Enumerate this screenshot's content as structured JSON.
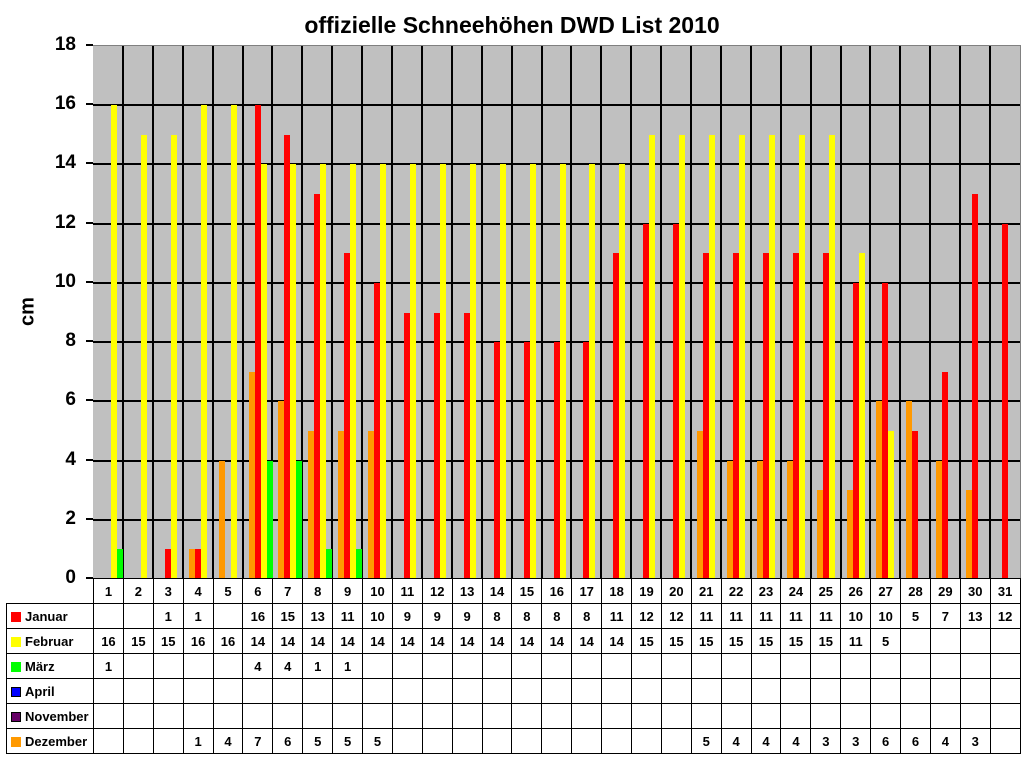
{
  "chart_data": {
    "type": "bar",
    "title": "offizielle Schneehöhen DWD List 2010",
    "xlabel": "",
    "ylabel": "cm",
    "ylim": [
      0,
      18
    ],
    "yticks": [
      0,
      2,
      4,
      6,
      8,
      10,
      12,
      14,
      16,
      18
    ],
    "grid": true,
    "legend_position": "data-table-left",
    "categories": [
      "1",
      "2",
      "3",
      "4",
      "5",
      "6",
      "7",
      "8",
      "9",
      "10",
      "11",
      "12",
      "13",
      "14",
      "15",
      "16",
      "17",
      "18",
      "19",
      "20",
      "21",
      "22",
      "23",
      "24",
      "25",
      "26",
      "27",
      "28",
      "29",
      "30",
      "31"
    ],
    "series": [
      {
        "name": "Januar",
        "color": "#ff0000",
        "values": [
          null,
          null,
          1,
          1,
          null,
          16,
          15,
          13,
          11,
          10,
          9,
          9,
          9,
          8,
          8,
          8,
          8,
          11,
          12,
          12,
          11,
          11,
          11,
          11,
          11,
          10,
          10,
          5,
          7,
          13,
          12
        ]
      },
      {
        "name": "Februar",
        "color": "#ffff00",
        "values": [
          16,
          15,
          15,
          16,
          16,
          14,
          14,
          14,
          14,
          14,
          14,
          14,
          14,
          14,
          14,
          14,
          14,
          14,
          15,
          15,
          15,
          15,
          15,
          15,
          15,
          11,
          5,
          null,
          null,
          null,
          null
        ]
      },
      {
        "name": "März",
        "color": "#00ff00",
        "values": [
          1,
          null,
          null,
          null,
          null,
          4,
          4,
          1,
          1,
          null,
          null,
          null,
          null,
          null,
          null,
          null,
          null,
          null,
          null,
          null,
          null,
          null,
          null,
          null,
          null,
          null,
          null,
          null,
          null,
          null,
          null
        ]
      },
      {
        "name": "April",
        "color": "#0000ff",
        "values": [
          null,
          null,
          null,
          null,
          null,
          null,
          null,
          null,
          null,
          null,
          null,
          null,
          null,
          null,
          null,
          null,
          null,
          null,
          null,
          null,
          null,
          null,
          null,
          null,
          null,
          null,
          null,
          null,
          null,
          null,
          null
        ]
      },
      {
        "name": "November",
        "color": "#660066",
        "values": [
          null,
          null,
          null,
          null,
          null,
          null,
          null,
          null,
          null,
          null,
          null,
          null,
          null,
          null,
          null,
          null,
          null,
          null,
          null,
          null,
          null,
          null,
          null,
          null,
          null,
          null,
          null,
          null,
          null,
          null,
          null
        ]
      },
      {
        "name": "Dezember",
        "color": "#ff9900",
        "values": [
          null,
          null,
          null,
          1,
          4,
          7,
          6,
          5,
          5,
          5,
          null,
          null,
          null,
          null,
          null,
          null,
          null,
          null,
          null,
          null,
          5,
          4,
          4,
          4,
          3,
          3,
          6,
          6,
          4,
          3,
          null
        ]
      }
    ],
    "bar_order_within_group": [
      "Dezember",
      "Januar",
      "Februar",
      "März"
    ]
  },
  "colors": {
    "plot_background": "#c0c0c0",
    "gridline": "#000000"
  }
}
